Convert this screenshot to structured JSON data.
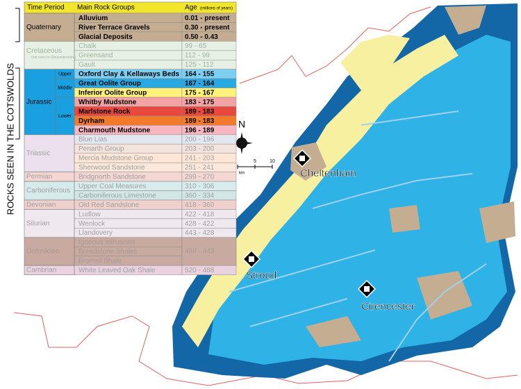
{
  "title": "ROCKS SEEN IN THE COTSWOLDS",
  "legend": {
    "headers": {
      "period": "Time Period",
      "groups": "Main Rock Groups",
      "age": "Age",
      "age_unit": "(millions of years)"
    },
    "header_color": "#f2e62a",
    "periods": [
      {
        "name": "Quaternary",
        "color": "#c4ad91",
        "text_color": "#000000",
        "groups": [
          {
            "name": "Alluvium",
            "age": "0.01 - present",
            "color": "#c4ad91"
          },
          {
            "name": "River Terrace Gravels",
            "age": "0.30 - present",
            "color": "#c4ad91"
          },
          {
            "name": "Glacial Deposits",
            "age": "0.50 - 0.43",
            "color": "#c4ad91"
          }
        ]
      },
      {
        "name": "Cretaceous",
        "note": "(not seen in Gloucestershire)",
        "color": "#e6f0e4",
        "text_color": "#9fb49f",
        "groups": [
          {
            "name": "Chalk",
            "age": "99 - 65",
            "color": "#e6f0e4"
          },
          {
            "name": "Greensand",
            "age": "112 - 99",
            "color": "#e6f0e4"
          },
          {
            "name": "Gault",
            "age": "125 - 112",
            "color": "#e6f0e4"
          }
        ]
      },
      {
        "name": "Jurassic",
        "color": "#1aa0e0",
        "text_color": "#000000",
        "subperiods": [
          {
            "name": "Upper",
            "groups": [
              {
                "name": "Oxford Clay & Kellaways Beds",
                "age": "164 - 155",
                "color": "#7ccff2"
              }
            ]
          },
          {
            "name": "Middle",
            "groups": [
              {
                "name": "Great Oolite Group",
                "age": "167 - 164",
                "color": "#2aa8e2"
              },
              {
                "name": "Inferior Oolite Group",
                "age": "175 - 167",
                "color": "#fff27a"
              }
            ]
          },
          {
            "name": "Lower",
            "groups": [
              {
                "name": "Whitby Mudstone",
                "age": "183 - 175",
                "color": "#f3a3a3"
              },
              {
                "name": "Marlstone Rock",
                "age": "189 - 183",
                "color": "#e8483e"
              },
              {
                "name": "Dyrham",
                "age": "189 - 183",
                "color": "#f27a2a"
              },
              {
                "name": "Charmouth Mudstone",
                "age": "196 - 189",
                "color": "#f7b6c0"
              }
            ]
          }
        ]
      },
      {
        "name": "Triassic",
        "color": "#ece0ee",
        "text_color": "#a0a0a0",
        "groups": [
          {
            "name": "Blue Lias",
            "age": "200 - 196",
            "color": "#e2e6ee"
          },
          {
            "name": "Penarth Group",
            "age": "203 - 200",
            "color": "#f2e4dc"
          },
          {
            "name": "Mercia Mudstone Group",
            "age": "241 - 203",
            "color": "#fde6d6"
          },
          {
            "name": "Sherwood Sandstone",
            "age": "251 - 241",
            "color": "#fbe8da"
          }
        ]
      },
      {
        "name": "Permian",
        "color": "#f4d6d2",
        "text_color": "#a0a0a0",
        "groups": [
          {
            "name": "Bridgnorth Sandstone",
            "age": "299 - 270",
            "color": "#f4d6d2"
          }
        ]
      },
      {
        "name": "Carboniferous",
        "color": "#d6eaea",
        "text_color": "#a0a0a0",
        "groups": [
          {
            "name": "Upper Coal Measures",
            "age": "310 - 306",
            "color": "#d8ecec"
          },
          {
            "name": "Carboniferous Limestone",
            "age": "360 - 334",
            "color": "#d2e6e6"
          }
        ]
      },
      {
        "name": "Devonian",
        "color": "#f0d0cc",
        "text_color": "#a0a0a0",
        "groups": [
          {
            "name": "Old Red Sandstone",
            "age": "418 - 360",
            "color": "#f0d0cc"
          }
        ]
      },
      {
        "name": "Silurian",
        "color": "#efe8ef",
        "text_color": "#a0a0a0",
        "groups": [
          {
            "name": "Ludlow",
            "age": "422 - 418",
            "color": "#efe8ef"
          },
          {
            "name": "Wenlock",
            "age": "428 - 422",
            "color": "#efe8ef"
          },
          {
            "name": "Llandovery",
            "age": "443 - 428",
            "color": "#efe8ef"
          }
        ]
      },
      {
        "name": "Ordovician",
        "age": "488 - 443",
        "color": "#c8aaa0",
        "text_color": "#a89a96",
        "groups": [
          {
            "name": "Igneous Intrusions",
            "color": "#c8aaa0"
          },
          {
            "name": "Breadstone Shales",
            "color": "#c8aaa0"
          },
          {
            "name": "Bromsil Shale",
            "color": "#c8aaa0"
          }
        ]
      },
      {
        "name": "Cambrian",
        "color": "#ead2de",
        "text_color": "#a0a0a0",
        "groups": [
          {
            "name": "White Leaved Oak Shale",
            "age": "520 - 488",
            "color": "#ead2de"
          }
        ]
      }
    ]
  },
  "map": {
    "towns": [
      {
        "name": "Cheltenham"
      },
      {
        "name": "Stroud"
      },
      {
        "name": "Cirencester"
      }
    ],
    "compass": "N",
    "scale": {
      "ticks": [
        5,
        10
      ],
      "unit": "km"
    }
  }
}
